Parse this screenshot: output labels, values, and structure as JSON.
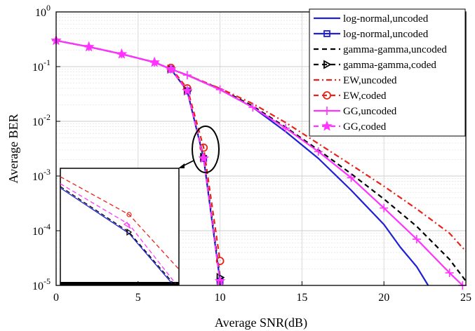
{
  "chart_data": {
    "type": "line",
    "title": "",
    "xlabel": "Average SNR(dB)",
    "ylabel": "Average BER",
    "xlim": [
      0,
      25
    ],
    "ylim": [
      1e-05,
      1
    ],
    "yscale": "log",
    "grid": true,
    "legend_position": "top-right",
    "xticks": [
      "0",
      "5",
      "10",
      "15",
      "20",
      "25"
    ],
    "yticks": [
      {
        "base": "10",
        "exp": "0"
      },
      {
        "base": "10",
        "exp": "-1"
      },
      {
        "base": "10",
        "exp": "-2"
      },
      {
        "base": "10",
        "exp": "-3"
      },
      {
        "base": "10",
        "exp": "-4"
      },
      {
        "base": "10",
        "exp": "-5"
      }
    ],
    "series": [
      {
        "name": "log-normal,uncoded",
        "color": "#1f1fd6",
        "dash": "solid",
        "marker": "none",
        "x": [
          0,
          2,
          4,
          6,
          7,
          8,
          10,
          12,
          14,
          16,
          18,
          20,
          21,
          22,
          22.7
        ],
        "y": [
          0.3,
          0.23,
          0.17,
          0.12,
          0.09,
          0.07,
          0.038,
          0.018,
          0.0065,
          0.0021,
          0.00055,
          0.00013,
          5e-05,
          2.2e-05,
          1e-05
        ]
      },
      {
        "name": "log-normal,uncoded",
        "color": "#1f1fd6",
        "dash": "solid",
        "marker": "square",
        "x": [
          7,
          8,
          9,
          10
        ],
        "y": [
          0.09,
          0.036,
          0.0021,
          1.2e-05
        ]
      },
      {
        "name": "gamma-gamma,uncoded",
        "color": "#000000",
        "dash": "dashed",
        "marker": "none",
        "x": [
          0,
          2,
          4,
          6,
          7,
          8,
          10,
          12,
          14,
          16,
          18,
          20,
          22,
          24,
          25
        ],
        "y": [
          0.3,
          0.23,
          0.17,
          0.12,
          0.09,
          0.07,
          0.039,
          0.019,
          0.0078,
          0.003,
          0.0011,
          0.00038,
          0.00012,
          3e-05,
          1.2e-05
        ]
      },
      {
        "name": "gamma-gamma,coded",
        "color": "#000000",
        "dash": "dashed",
        "marker": "triangle-right",
        "x": [
          7,
          8,
          9,
          10
        ],
        "y": [
          0.09,
          0.036,
          0.0022,
          1.4e-05
        ]
      },
      {
        "name": "EW,uncoded",
        "color": "#e8221a",
        "dash": "dashdot",
        "marker": "none",
        "x": [
          0,
          2,
          4,
          6,
          7,
          8,
          10,
          12,
          14,
          16,
          18,
          20,
          22,
          24,
          25
        ],
        "y": [
          0.3,
          0.23,
          0.17,
          0.12,
          0.09,
          0.07,
          0.04,
          0.021,
          0.0095,
          0.0039,
          0.0016,
          0.00065,
          0.00025,
          9e-05,
          4.2e-05
        ]
      },
      {
        "name": "EW,coded",
        "color": "#e8221a",
        "dash": "dashed",
        "marker": "circle",
        "x": [
          7,
          8,
          9,
          10
        ],
        "y": [
          0.095,
          0.04,
          0.0033,
          2.8e-05
        ]
      },
      {
        "name": "GG,uncoded",
        "color": "#ff33ff",
        "dash": "solid",
        "marker": "plus",
        "x": [
          0,
          2,
          4,
          6,
          7,
          8,
          10,
          12,
          14,
          16,
          18,
          20,
          22,
          24,
          24.8
        ],
        "y": [
          0.3,
          0.23,
          0.17,
          0.12,
          0.09,
          0.07,
          0.038,
          0.018,
          0.0075,
          0.0028,
          0.00093,
          0.00026,
          7e-05,
          1.7e-05,
          1e-05
        ]
      },
      {
        "name": "GG,coded",
        "color": "#ff33ff",
        "dash": "dashed",
        "marker": "star",
        "x": [
          0,
          2,
          4,
          6,
          7,
          8,
          9,
          10
        ],
        "y": [
          0.3,
          0.23,
          0.17,
          0.12,
          0.09,
          0.036,
          0.0021,
          1.2e-05
        ]
      }
    ]
  }
}
